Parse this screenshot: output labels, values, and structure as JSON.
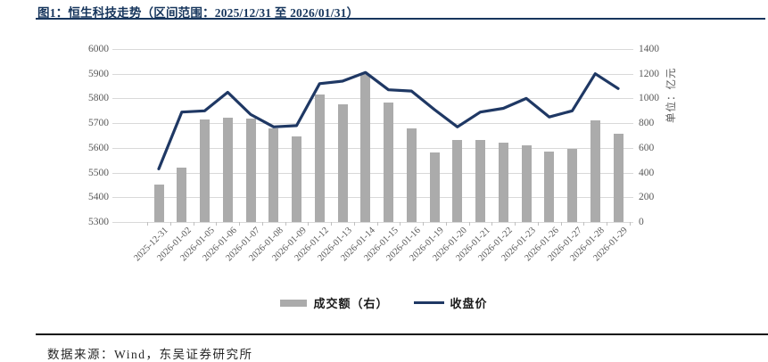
{
  "header": {
    "title": "图1：恒生科技走势（区间范围：2025/12/31 至 2026/01/31）"
  },
  "footer": {
    "source_note": "数据来源：Wind，东吴证券研究所"
  },
  "colors": {
    "title_navy": "#17365D",
    "line_navy": "#1F3864",
    "bar_gray": "#ABABAB",
    "gridline": "#D9D9D9",
    "axis_label": "#595959",
    "footer_rule": "#111111"
  },
  "chart_data": {
    "type": "combo",
    "title": "恒生科技走势",
    "date_range": "2025/12/31 至 2026/01/31",
    "categories": [
      "2025-12-31",
      "2026-01-02",
      "2026-01-05",
      "2026-01-06",
      "2026-01-07",
      "2026-01-08",
      "2026-01-09",
      "2026-01-12",
      "2026-01-13",
      "2026-01-14",
      "2026-01-15",
      "2026-01-16",
      "2026-01-19",
      "2026-01-20",
      "2026-01-21",
      "2026-01-22",
      "2026-01-23",
      "2026-01-26",
      "2026-01-27",
      "2026-01-28",
      "2026-01-29"
    ],
    "series": [
      {
        "name": "成交额（右）",
        "type": "bar",
        "axis": "right",
        "color": "#ABABAB",
        "values": [
          300,
          440,
          830,
          845,
          835,
          755,
          690,
          1030,
          950,
          1200,
          970,
          755,
          560,
          665,
          665,
          645,
          620,
          570,
          590,
          820,
          715
        ]
      },
      {
        "name": "收盘价",
        "type": "line",
        "axis": "left",
        "color": "#1F3864",
        "values": [
          5515,
          5745,
          5750,
          5825,
          5735,
          5685,
          5690,
          5860,
          5870,
          5905,
          5835,
          5830,
          5755,
          5685,
          5745,
          5760,
          5800,
          5725,
          5750,
          5900,
          5840
        ]
      }
    ],
    "left_axis": {
      "min": 5300,
      "max": 6000,
      "step": 100,
      "ticks": [
        "6000",
        "5900",
        "5800",
        "5700",
        "5600",
        "5500",
        "5400",
        "5300"
      ]
    },
    "right_axis": {
      "min": 0,
      "max": 1400,
      "step": 200,
      "ticks": [
        "1400",
        "1200",
        "1000",
        "800",
        "600",
        "400",
        "200",
        "0"
      ],
      "title": "单位：亿元"
    },
    "legend": [
      "成交额（右）",
      "收盘价"
    ],
    "legend_position": "bottom",
    "grid": true
  }
}
